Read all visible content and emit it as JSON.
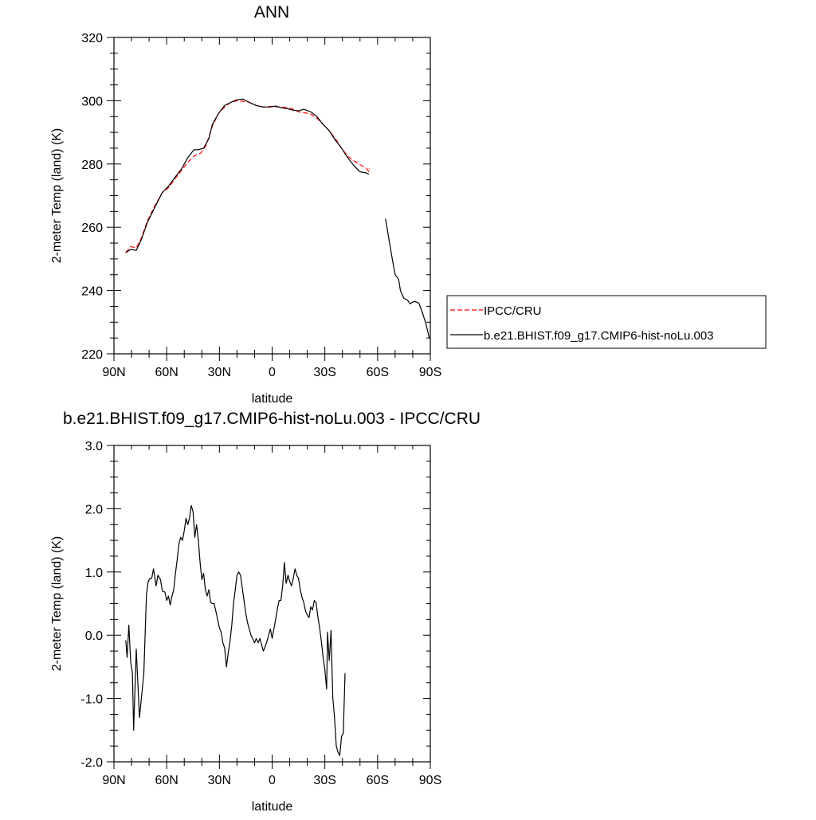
{
  "chart_data": [
    {
      "type": "line",
      "title": "ANN",
      "xlabel": "latitude",
      "ylabel": "2-meter Temp (land) (K)",
      "xlim": [
        90,
        -90
      ],
      "ylim": [
        220,
        320
      ],
      "x_ticks": [
        90,
        60,
        30,
        0,
        -30,
        -60,
        -90
      ],
      "x_tick_labels": [
        "90N",
        "60N",
        "30N",
        "0",
        "30S",
        "60S",
        "90S"
      ],
      "y_ticks": [
        220,
        240,
        260,
        280,
        300,
        320
      ],
      "y_tick_labels": [
        "220",
        "240",
        "260",
        "280",
        "300",
        "320"
      ],
      "legend_position": "right",
      "series": [
        {
          "name": "IPCC/CRU",
          "color": "#ff0000",
          "dash": "dashed",
          "points": [
            [
              83.3,
              252
            ],
            [
              80.5,
              253.9
            ],
            [
              77.3,
              253.5
            ],
            [
              74.5,
              256.5
            ],
            [
              71,
              262
            ],
            [
              67,
              266.5
            ],
            [
              62.5,
              271
            ],
            [
              59,
              272.5
            ],
            [
              55,
              275.5
            ],
            [
              51.5,
              278
            ],
            [
              48,
              280.5
            ],
            [
              44.5,
              282.5
            ],
            [
              40.5,
              283.5
            ],
            [
              37.5,
              286
            ],
            [
              34,
              292
            ],
            [
              30.5,
              296
            ],
            [
              27,
              298
            ],
            [
              23.5,
              299.5
            ],
            [
              20,
              300
            ],
            [
              16.5,
              299.8
            ],
            [
              13,
              299.5
            ],
            [
              9,
              298.5
            ],
            [
              5,
              298
            ],
            [
              1.5,
              298.2
            ],
            [
              -2,
              298.1
            ],
            [
              -5,
              298
            ],
            [
              -8.5,
              297.8
            ],
            [
              -12,
              297.3
            ],
            [
              -15,
              296.5
            ],
            [
              -18.5,
              296.2
            ],
            [
              -22,
              295.8
            ],
            [
              -25.5,
              294.5
            ],
            [
              -29,
              292.5
            ],
            [
              -32.5,
              290.5
            ],
            [
              -36,
              288
            ],
            [
              -39.5,
              285
            ],
            [
              -43,
              282.5
            ],
            [
              -46.5,
              281
            ],
            [
              -50,
              279.8
            ],
            [
              -53.5,
              278.7
            ],
            [
              -55,
              277.6
            ],
            [
              -55.3,
              278.6
            ]
          ]
        },
        {
          "name": "b.e21.BHIST.f09_g17.CMIP6-hist-noLu.003",
          "color": "#000000",
          "dash": "solid",
          "segments": [
            [
              [
                83.3,
                252
              ],
              [
                80.5,
                253
              ],
              [
                77.3,
                252.7
              ],
              [
                74.5,
                256
              ],
              [
                71,
                261.5
              ],
              [
                67,
                266
              ],
              [
                62.5,
                271
              ],
              [
                59,
                273
              ],
              [
                55,
                276
              ],
              [
                51.5,
                278.5
              ],
              [
                48,
                282
              ],
              [
                44.5,
                284.5
              ],
              [
                42,
                284.5
              ],
              [
                39,
                285
              ],
              [
                36,
                288
              ],
              [
                34,
                292.5
              ],
              [
                30.5,
                296
              ],
              [
                27,
                298.5
              ],
              [
                23.5,
                299.5
              ],
              [
                20,
                300.3
              ],
              [
                16.5,
                300.5
              ],
              [
                13,
                299.5
              ],
              [
                9,
                298.5
              ],
              [
                5,
                298
              ],
              [
                1.5,
                298
              ],
              [
                -2,
                298.3
              ],
              [
                -5,
                297.8
              ],
              [
                -8.5,
                297.5
              ],
              [
                -12,
                297
              ],
              [
                -15,
                296.8
              ],
              [
                -18,
                297.3
              ],
              [
                -22,
                296.5
              ],
              [
                -25.5,
                295
              ],
              [
                -29,
                292.5
              ],
              [
                -32.5,
                290.5
              ],
              [
                -36,
                287.5
              ],
              [
                -39.5,
                285
              ],
              [
                -43,
                282
              ],
              [
                -46.5,
                279.5
              ],
              [
                -50,
                277.5
              ],
              [
                -53.5,
                277.2
              ],
              [
                -55,
                276.8
              ]
            ],
            [
              [
                -64.5,
                262.7
              ],
              [
                -66.5,
                256
              ],
              [
                -68.5,
                249.5
              ],
              [
                -70,
                245
              ],
              [
                -72,
                243.5
              ],
              [
                -73,
                240
              ],
              [
                -75,
                237.5
              ],
              [
                -77,
                237
              ],
              [
                -78.5,
                235.8
              ],
              [
                -80.5,
                236.5
              ],
              [
                -82,
                236.4
              ],
              [
                -83.5,
                236
              ],
              [
                -85.5,
                233
              ],
              [
                -87.5,
                229.5
              ],
              [
                -89.5,
                224.8
              ]
            ]
          ]
        }
      ]
    },
    {
      "type": "line",
      "title": "b.e21.BHIST.f09_g17.CMIP6-hist-noLu.003 - IPCC/CRU",
      "xlabel": "latitude",
      "ylabel": "2-meter Temp (land) (K)",
      "xlim": [
        90,
        -90
      ],
      "ylim": [
        -2.0,
        3.0
      ],
      "x_ticks": [
        90,
        60,
        30,
        0,
        -30,
        -60,
        -90
      ],
      "x_tick_labels": [
        "90N",
        "60N",
        "30N",
        "0",
        "30S",
        "60S",
        "90S"
      ],
      "y_ticks": [
        -2.0,
        -1.0,
        0.0,
        1.0,
        2.0,
        3.0
      ],
      "y_tick_labels": [
        "-2.0",
        "-1.0",
        "0.0",
        "1.0",
        "2.0",
        "3.0"
      ],
      "series": [
        {
          "color": "#000000",
          "dash": "solid",
          "points": [
            [
              83.3,
              -0.08
            ],
            [
              82.5,
              -0.35
            ],
            [
              81.5,
              0.16
            ],
            [
              80.5,
              -0.42
            ],
            [
              79.5,
              -0.6
            ],
            [
              78.8,
              -1.5
            ],
            [
              77.3,
              -0.22
            ],
            [
              75.5,
              -1.3
            ],
            [
              74.2,
              -0.95
            ],
            [
              73,
              -0.6
            ],
            [
              71.5,
              0.65
            ],
            [
              70.5,
              0.85
            ],
            [
              69.5,
              0.9
            ],
            [
              68.5,
              0.9
            ],
            [
              67.5,
              1.05
            ],
            [
              66,
              0.78
            ],
            [
              65,
              0.95
            ],
            [
              63.5,
              0.88
            ],
            [
              62.5,
              0.7
            ],
            [
              61,
              0.68
            ],
            [
              60,
              0.55
            ],
            [
              59,
              0.62
            ],
            [
              58,
              0.48
            ],
            [
              57,
              0.62
            ],
            [
              56,
              0.72
            ],
            [
              55,
              0.98
            ],
            [
              54,
              1.2
            ],
            [
              53,
              1.45
            ],
            [
              52,
              1.55
            ],
            [
              51,
              1.5
            ],
            [
              50,
              1.65
            ],
            [
              49,
              1.85
            ],
            [
              48,
              1.75
            ],
            [
              47,
              1.85
            ],
            [
              46,
              2.05
            ],
            [
              45,
              1.95
            ],
            [
              44,
              1.55
            ],
            [
              43,
              1.75
            ],
            [
              42,
              1.5
            ],
            [
              41,
              1.15
            ],
            [
              40,
              0.88
            ],
            [
              39,
              0.98
            ],
            [
              38,
              0.72
            ],
            [
              37,
              0.62
            ],
            [
              36,
              0.72
            ],
            [
              35,
              0.52
            ],
            [
              34,
              0.5
            ],
            [
              33,
              0.5
            ],
            [
              32,
              0.38
            ],
            [
              31,
              0.25
            ],
            [
              30,
              0.12
            ],
            [
              29,
              0.05
            ],
            [
              28,
              -0.12
            ],
            [
              27,
              -0.2
            ],
            [
              26,
              -0.5
            ],
            [
              25,
              -0.28
            ],
            [
              24,
              -0.1
            ],
            [
              23,
              0.15
            ],
            [
              22,
              0.5
            ],
            [
              21,
              0.72
            ],
            [
              20,
              0.95
            ],
            [
              19,
              1.0
            ],
            [
              18,
              0.95
            ],
            [
              17,
              0.75
            ],
            [
              16,
              0.55
            ],
            [
              15,
              0.35
            ],
            [
              14,
              0.2
            ],
            [
              12,
              0.0
            ],
            [
              11,
              -0.05
            ],
            [
              10,
              -0.12
            ],
            [
              9,
              -0.05
            ],
            [
              8,
              -0.12
            ],
            [
              7,
              -0.05
            ],
            [
              6,
              -0.15
            ],
            [
              5,
              -0.25
            ],
            [
              4,
              -0.18
            ],
            [
              3,
              -0.1
            ],
            [
              2,
              0.0
            ],
            [
              1,
              0.1
            ],
            [
              0,
              -0.05
            ],
            [
              -1,
              0.1
            ],
            [
              -2,
              0.25
            ],
            [
              -3,
              0.42
            ],
            [
              -4,
              0.55
            ],
            [
              -5,
              0.55
            ],
            [
              -6,
              0.78
            ],
            [
              -7,
              1.15
            ],
            [
              -8,
              0.82
            ],
            [
              -9,
              0.95
            ],
            [
              -10,
              0.85
            ],
            [
              -11,
              0.78
            ],
            [
              -12,
              0.9
            ],
            [
              -13,
              1.05
            ],
            [
              -14,
              0.95
            ],
            [
              -15,
              0.9
            ],
            [
              -16,
              0.72
            ],
            [
              -17,
              0.6
            ],
            [
              -18,
              0.52
            ],
            [
              -19,
              0.38
            ],
            [
              -20,
              0.32
            ],
            [
              -21,
              0.28
            ],
            [
              -22,
              0.45
            ],
            [
              -23,
              0.4
            ],
            [
              -24,
              0.55
            ],
            [
              -25,
              0.52
            ],
            [
              -26,
              0.3
            ],
            [
              -27,
              0.12
            ],
            [
              -28,
              -0.1
            ],
            [
              -29,
              -0.35
            ],
            [
              -30,
              -0.55
            ],
            [
              -31,
              -0.85
            ],
            [
              -31.5,
              0.05
            ],
            [
              -32.5,
              -0.4
            ],
            [
              -33.5,
              0.08
            ],
            [
              -34.5,
              -0.98
            ],
            [
              -35.5,
              -1.3
            ],
            [
              -36.5,
              -1.75
            ],
            [
              -37.5,
              -1.85
            ],
            [
              -38.5,
              -1.9
            ],
            [
              -39.5,
              -1.6
            ],
            [
              -40.5,
              -1.55
            ],
            [
              -41.5,
              -0.6
            ]
          ]
        }
      ]
    }
  ],
  "legend": {
    "entries": [
      {
        "label": "IPCC/CRU",
        "color": "#ff0000",
        "dash": "dashed"
      },
      {
        "label": "b.e21.BHIST.f09_g17.CMIP6-hist-noLu.003",
        "color": "#000000",
        "dash": "solid"
      }
    ]
  }
}
